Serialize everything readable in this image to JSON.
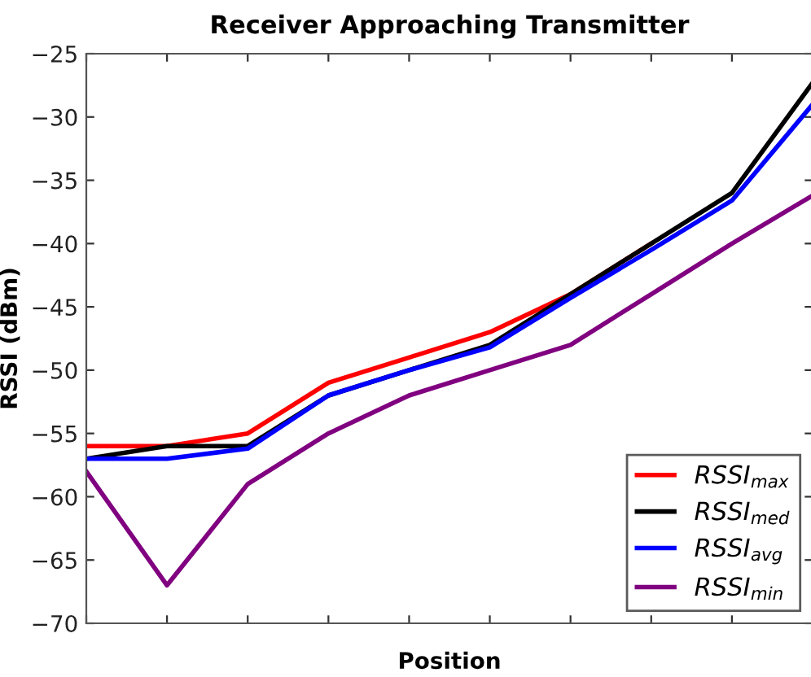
{
  "chart_data": {
    "type": "line",
    "title": "Receiver Approaching Transmitter",
    "xlabel": "Position",
    "ylabel": "RSSI (dBm)",
    "categories": [
      null,
      null,
      null,
      null,
      null,
      null,
      null,
      null,
      null,
      null
    ],
    "series": [
      {
        "name": "RSSI$_{max}$",
        "color": "#ff0000",
        "values": [
          -56,
          -56,
          -55,
          -51,
          -49,
          -47,
          -44,
          -40,
          null,
          null
        ]
      },
      {
        "name": "RSSI$_{med}$",
        "color": "#000000",
        "values": [
          -57,
          -56,
          -56,
          -52,
          -50,
          -48,
          -44,
          -40,
          -36,
          -27.3
        ]
      },
      {
        "name": "RSSI$_{avg}$",
        "color": "#0000ff",
        "values": [
          -57,
          -57,
          -56.2,
          -52,
          -50,
          -48.2,
          -44.3,
          -40.5,
          -36.6,
          -29
        ]
      },
      {
        "name": "RSSI$_{min}$",
        "color": "#800080",
        "values": [
          -58,
          -67,
          -59,
          -55,
          -52,
          -50,
          -48,
          -44,
          -40,
          -36.2
        ]
      }
    ],
    "ylim": [
      -70,
      -25
    ],
    "yticks": [
      -70,
      -65,
      -60,
      -55,
      -50,
      -45,
      -40,
      -35,
      -30,
      -25
    ],
    "legend": "bottom right",
    "grid": false,
    "marker": "none",
    "line_style": "solid"
  }
}
